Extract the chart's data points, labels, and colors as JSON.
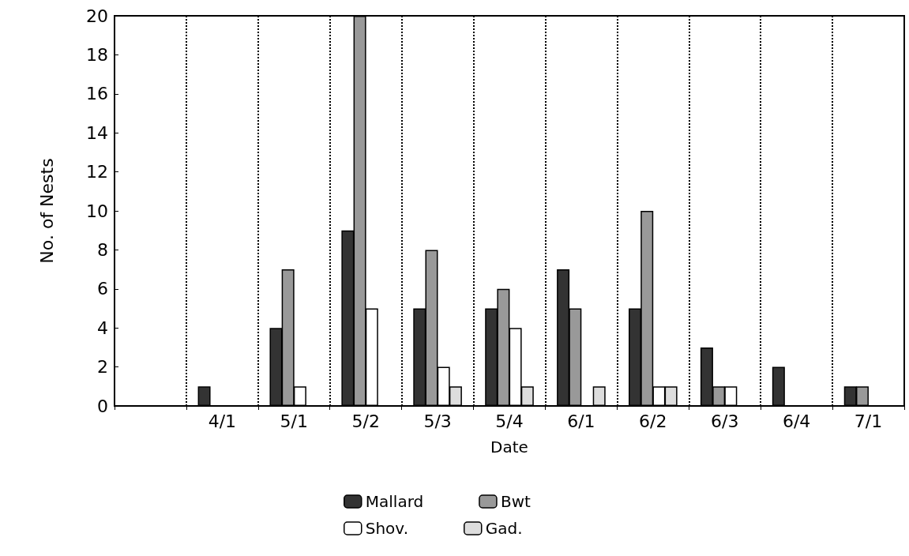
{
  "chart_data": {
    "type": "bar",
    "xlabel": "Date",
    "ylabel": "No. of Nests",
    "categories": [
      null,
      "4/1",
      "5/1",
      "5/2",
      "5/3",
      "5/4",
      "6/1",
      "6/2",
      "6/3",
      "6/4",
      "7/1"
    ],
    "series": [
      {
        "name": "Mallard",
        "color": "#333333",
        "values": [
          null,
          1,
          4,
          9,
          5,
          5,
          7,
          5,
          3,
          2,
          1
        ]
      },
      {
        "name": "Bwt",
        "color": "#999999",
        "values": [
          null,
          0,
          7,
          20,
          8,
          6,
          5,
          10,
          1,
          0,
          1
        ]
      },
      {
        "name": "Shov.",
        "color": "#ffffff",
        "values": [
          null,
          0,
          1,
          5,
          2,
          4,
          0,
          1,
          1,
          0,
          0
        ]
      },
      {
        "name": "Gad.",
        "color": "#dddddd",
        "values": [
          null,
          0,
          0,
          0,
          1,
          1,
          1,
          1,
          0,
          0,
          0
        ]
      }
    ],
    "ylim": [
      0,
      20
    ],
    "yticks": [
      0,
      2,
      4,
      6,
      8,
      10,
      12,
      14,
      16,
      18,
      20
    ],
    "grid": "x",
    "legend": "bottom"
  }
}
